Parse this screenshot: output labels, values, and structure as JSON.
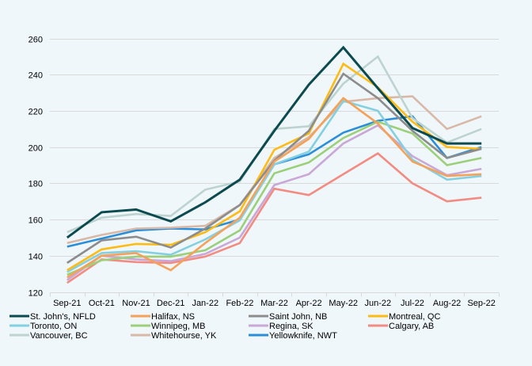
{
  "chart_data": {
    "type": "line",
    "title": "",
    "xlabel": "",
    "ylabel": "",
    "ylim": [
      120,
      260
    ],
    "yticks": [
      120,
      140,
      160,
      180,
      200,
      220,
      240,
      260
    ],
    "grid": "horizontal",
    "legend_position": "bottom",
    "categories": [
      "Sep-21",
      "Oct-21",
      "Nov-21",
      "Dec-21",
      "Jan-22",
      "Feb-22",
      "Mar-22",
      "Apr-22",
      "May-22",
      "Jun-22",
      "Jul-22",
      "Aug-22",
      "Sep-22"
    ],
    "series": [
      {
        "name": "St. John's, NFLD",
        "color": "#0b4a4e",
        "values": [
          150,
          164,
          165.5,
          159,
          169.5,
          182,
          209,
          234.5,
          255,
          232.5,
          210.5,
          202,
          202
        ]
      },
      {
        "name": "Halifax, NS",
        "color": "#f4a25a",
        "values": [
          128,
          140,
          141.5,
          132,
          147,
          161,
          192,
          204.5,
          227,
          213,
          192,
          184,
          185
        ]
      },
      {
        "name": "Saint John, NB",
        "color": "#8c8c8c",
        "values": [
          136,
          148.5,
          150.5,
          144.5,
          155,
          168,
          192.5,
          209,
          240.5,
          227,
          209,
          194,
          199
        ]
      },
      {
        "name": "Montreal, QC",
        "color": "#fdbb13",
        "values": [
          132,
          143.5,
          146.5,
          146,
          153,
          164.5,
          198.5,
          207.5,
          246,
          233,
          214,
          200,
          199
        ]
      },
      {
        "name": "Toronto, ON",
        "color": "#85d0e0",
        "values": [
          131,
          141.5,
          142.5,
          140.5,
          149,
          159.5,
          190.5,
          197.5,
          225.5,
          220,
          193,
          182,
          184
        ]
      },
      {
        "name": "Winnipeg, MB",
        "color": "#9ccf7a",
        "values": [
          129.5,
          137.5,
          139.5,
          139.5,
          143,
          154,
          185.5,
          191.5,
          205,
          214,
          207.5,
          190,
          194
        ]
      },
      {
        "name": "Regina, SK",
        "color": "#c9a7d6",
        "values": [
          126.5,
          140,
          138,
          137,
          141,
          150,
          179,
          185,
          202,
          212,
          195,
          184.5,
          188
        ]
      },
      {
        "name": "Calgary, AB",
        "color": "#f28b82",
        "values": [
          125,
          138,
          136.5,
          136,
          139.5,
          147,
          177,
          173.5,
          185,
          196.5,
          180,
          170,
          172
        ]
      },
      {
        "name": "Vancouver, BC",
        "color": "#bcd3cf",
        "values": [
          153,
          161,
          163,
          162,
          176.5,
          181,
          210,
          211.5,
          235,
          250,
          216,
          202.5,
          210
        ]
      },
      {
        "name": "Whitehourse, YK",
        "color": "#d8b8a6",
        "values": [
          147,
          151.5,
          155,
          155.5,
          156.5,
          168,
          194,
          205.5,
          225,
          227,
          228,
          210,
          217
        ]
      },
      {
        "name": "Yellowknife, NWT",
        "color": "#2b8ed8",
        "values": [
          145,
          149.5,
          154,
          155,
          154.5,
          160,
          190.5,
          196,
          208,
          214.5,
          217,
          194,
          200
        ]
      }
    ]
  },
  "legend": {
    "items": [
      {
        "name": "St. John's, NFLD",
        "color": "#0b4a4e"
      },
      {
        "name": "Halifax, NS",
        "color": "#f4a25a"
      },
      {
        "name": "Saint John, NB",
        "color": "#8c8c8c"
      },
      {
        "name": "Montreal, QC",
        "color": "#fdbb13"
      },
      {
        "name": "Toronto, ON",
        "color": "#85d0e0"
      },
      {
        "name": "Winnipeg, MB",
        "color": "#9ccf7a"
      },
      {
        "name": "Regina, SK",
        "color": "#c9a7d6"
      },
      {
        "name": "Calgary, AB",
        "color": "#f28b82"
      },
      {
        "name": "Vancouver, BC",
        "color": "#bcd3cf"
      },
      {
        "name": "Whitehourse, YK",
        "color": "#d8b8a6"
      },
      {
        "name": "Yellowknife, NWT",
        "color": "#2b8ed8"
      }
    ]
  },
  "colors": {
    "background": "#f0f7fa",
    "grid": "#d9d9d9"
  }
}
